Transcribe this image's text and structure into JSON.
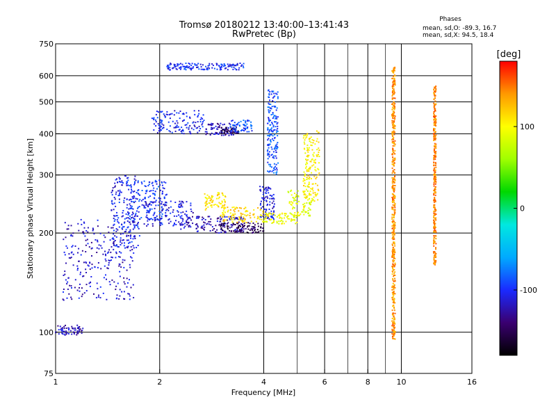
{
  "chart_data": {
    "type": "scatter",
    "title": "Tromsø 20180212 13:40:00–13:41:43",
    "subtitle": "RwPretec (Bp)",
    "xlabel": "Frequency [MHz]",
    "ylabel": "Stationary phase Virtual Height [km]",
    "x_scale": "log",
    "y_scale": "log",
    "xlim": [
      1,
      16
    ],
    "ylim": [
      75,
      750
    ],
    "x_ticks": [
      1,
      2,
      4,
      6,
      8,
      10,
      16
    ],
    "x_tick_labels": [
      "1",
      "2",
      "4",
      "6",
      "8",
      "10",
      "16"
    ],
    "x_minor_gridlines": [
      5,
      7,
      9
    ],
    "y_ticks": [
      75,
      100,
      200,
      300,
      400,
      500,
      600,
      750
    ],
    "y_tick_labels": [
      "75",
      "100",
      "200",
      "300",
      "400",
      "500",
      "600",
      "750"
    ],
    "grid": true,
    "phases_box": {
      "heading": "Phases",
      "line_o": "mean, sd,O: -89.3, 16.7",
      "line_x": "mean, sd,X:  94.5, 18.4"
    },
    "colorbar": {
      "label": "[deg]",
      "range": [
        -180,
        180
      ],
      "ticks": [
        100,
        0,
        -100
      ],
      "tick_labels": [
        "100",
        "0",
        "-100"
      ],
      "colors": [
        "#000000",
        "#3a0070",
        "#1a2aff",
        "#00aaff",
        "#00e8e0",
        "#00d800",
        "#a0ff00",
        "#ffff00",
        "#ff9900",
        "#ff0000"
      ]
    },
    "series": [
      {
        "mode": "O",
        "phase_mean": -89.3,
        "segments": [
          {
            "f": [
              1.0,
              1.2
            ],
            "h": [
              98,
              105
            ],
            "phase": -120
          },
          {
            "f": [
              1.05,
              1.7
            ],
            "h": [
              125,
              220
            ],
            "phase": -115
          },
          {
            "f": [
              1.45,
              1.75
            ],
            "h": [
              180,
              300
            ],
            "phase": -105
          },
          {
            "f": [
              1.6,
              2.1
            ],
            "h": [
              220,
              290
            ],
            "phase": -95
          },
          {
            "f": [
              1.8,
              2.5
            ],
            "h": [
              210,
              250
            ],
            "phase": -110
          },
          {
            "f": [
              2.3,
              3.5
            ],
            "h": [
              200,
              225
            ],
            "phase": -120
          },
          {
            "f": [
              3.0,
              4.0
            ],
            "h": [
              200,
              215
            ],
            "phase": -150
          },
          {
            "f": [
              1.9,
              2.7
            ],
            "h": [
              400,
              470
            ],
            "phase": -105
          },
          {
            "f": [
              2.7,
              3.3
            ],
            "h": [
              395,
              430
            ],
            "phase": -120
          },
          {
            "f": [
              3.0,
              3.4
            ],
            "h": [
              400,
              420
            ],
            "phase": -150
          },
          {
            "f": [
              3.2,
              3.7
            ],
            "h": [
              405,
              440
            ],
            "phase": -90
          },
          {
            "f": [
              2.1,
              3.5
            ],
            "h": [
              625,
              655
            ],
            "phase": -100
          },
          {
            "f": [
              3.9,
              4.3
            ],
            "h": [
              220,
              280
            ],
            "phase": -110
          },
          {
            "f": [
              4.1,
              4.4
            ],
            "h": [
              300,
              550
            ],
            "phase": -90
          }
        ]
      },
      {
        "mode": "X",
        "phase_mean": 94.5,
        "segments": [
          {
            "f": [
              2.7,
              3.1
            ],
            "h": [
              235,
              265
            ],
            "phase": 110
          },
          {
            "f": [
              3.0,
              4.0
            ],
            "h": [
              215,
              240
            ],
            "phase": 115
          },
          {
            "f": [
              4.0,
              5.0
            ],
            "h": [
              213,
              230
            ],
            "phase": 95
          },
          {
            "f": [
              4.7,
              5.5
            ],
            "h": [
              225,
              270
            ],
            "phase": 90
          },
          {
            "f": [
              5.2,
              5.8
            ],
            "h": [
              250,
              410
            ],
            "phase": 105
          },
          {
            "f": [
              9.4,
              9.6
            ],
            "h": [
              95,
              640
            ],
            "phase": 140
          },
          {
            "f": [
              12.4,
              12.6
            ],
            "h": [
              160,
              560
            ],
            "phase": 145
          }
        ]
      }
    ]
  }
}
